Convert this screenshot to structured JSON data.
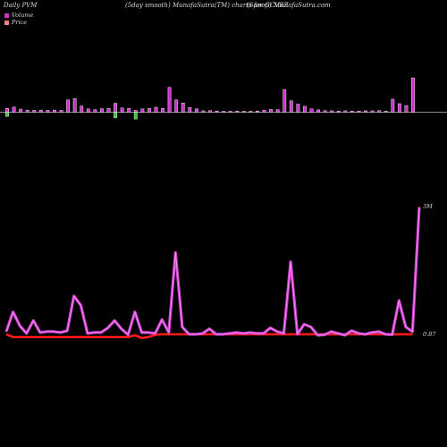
{
  "header": {
    "left": "Daily PVM",
    "center": "(5day smooth) MunafaSutra(TM) charts for GCVRZ",
    "right": "(Sanofi) MunafaSutra.com"
  },
  "legend": [
    {
      "label": "Volume",
      "color": "#cc33cc"
    },
    {
      "label": "Price",
      "color": "#f08080"
    }
  ],
  "colors": {
    "volume_up": "#cc33cc",
    "volume_down": "#33cc33",
    "volume_line": "#cc44cc",
    "volume_line_glow": "#ff88ff",
    "price_line": "#ff1a1a",
    "axis": "#bbbbbb"
  },
  "chart_data": [
    {
      "type": "bar",
      "title": "",
      "series": [
        {
          "values": [
            1.6,
            2.2,
            1.3,
            0.9,
            0.8,
            0.9,
            0.8,
            0.9,
            0.8,
            5.2,
            5.8,
            2.6,
            1.4,
            1.1,
            1.5,
            1.6,
            3.8,
            1.8,
            1.6,
            0.8,
            1.4,
            1.6,
            2.1,
            1.6,
            10.5,
            5.2,
            3.9,
            2.0,
            1.4,
            0.6,
            0.7,
            0.5,
            0.4,
            0.4,
            0.5,
            0.4,
            0.4,
            0.5,
            0.9,
            1.2,
            1.1,
            9.5,
            4.8,
            3.4,
            2.5,
            1.4,
            1.0,
            0.7,
            0.6,
            0.5,
            0.6,
            0.5,
            0.5,
            0.6,
            0.6,
            0.7,
            0.5,
            5.5,
            3.6,
            2.8,
            14.5
          ]
        },
        {
          "values": [
            1.8,
            0,
            0,
            0,
            0,
            0,
            0,
            0,
            0,
            0,
            0,
            0,
            0,
            0,
            0,
            0,
            2.4,
            0,
            0,
            2.9,
            0,
            0,
            0,
            0,
            0,
            0,
            0,
            0,
            0,
            0,
            0,
            0,
            0,
            0,
            0,
            0,
            0,
            0,
            0,
            0,
            0,
            0,
            0,
            0,
            0,
            0,
            0,
            0,
            0,
            0,
            0,
            0,
            0,
            0,
            0,
            0,
            0,
            0,
            0,
            0,
            0
          ]
        }
      ]
    },
    {
      "type": "line",
      "title": "",
      "y_tick_labels": [
        "3M",
        "0.87"
      ],
      "series": [
        {
          "values": [
            0.12,
            0.55,
            0.25,
            0.08,
            0.36,
            0.1,
            0.12,
            0.12,
            0.1,
            0.14,
            0.9,
            0.7,
            0.08,
            0.1,
            0.1,
            0.2,
            0.36,
            0.18,
            0.05,
            0.55,
            0.1,
            0.1,
            0.08,
            0.38,
            0.1,
            1.85,
            0.22,
            0.06,
            0.06,
            0.08,
            0.18,
            0.06,
            0.06,
            0.08,
            0.1,
            0.08,
            0.1,
            0.08,
            0.08,
            0.2,
            0.12,
            0.08,
            1.65,
            0.06,
            0.28,
            0.22,
            0.04,
            0.05,
            0.12,
            0.08,
            0.04,
            0.14,
            0.08,
            0.06,
            0.1,
            0.12,
            0.06,
            0.05,
            0.8,
            0.22,
            0.12,
            2.85
          ]
        },
        {
          "values": [
            0.06,
            0,
            0,
            0,
            0,
            0,
            0,
            0,
            0,
            0,
            0,
            0,
            0,
            0,
            0,
            0,
            0,
            0,
            0,
            0.04,
            -0.02,
            0,
            0.05,
            0.06,
            0.06,
            0.06,
            0.06,
            0.06,
            0.06,
            0.06,
            0.06,
            0.06,
            0.06,
            0.06,
            0.06,
            0.06,
            0.06,
            0.06,
            0.06,
            0.06,
            0.06,
            0.06,
            0.06,
            0.06,
            0.06,
            0.06,
            0.06,
            0.06,
            0.06,
            0.06,
            0.06,
            0.06,
            0.06,
            0.06,
            0.06,
            0.06,
            0.06,
            0.06,
            0.06,
            0.06,
            0.06
          ]
        }
      ]
    }
  ]
}
